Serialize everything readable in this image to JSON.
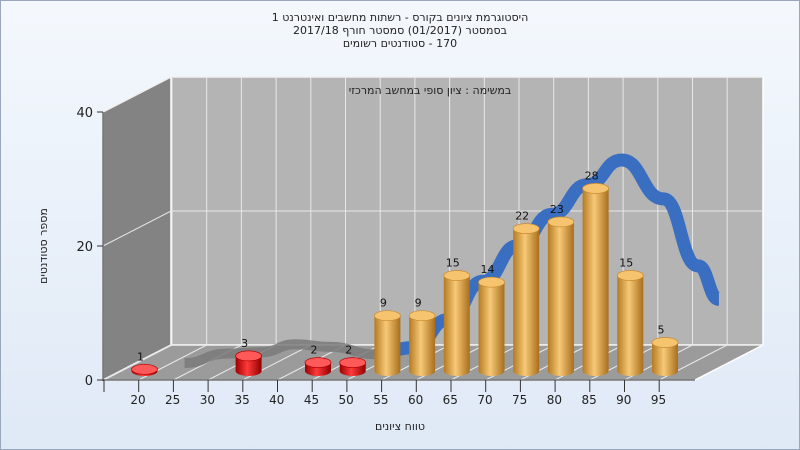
{
  "chart_data": {
    "type": "bar",
    "title_lines": [
      "היסטוגרמת ציונים בקורס - רשתות מחשבים ואינטרנט 1",
      "בסמסטר  (01/2017)  סמסטר חורף 2017/18",
      "170 - סטודנטים רשומים"
    ],
    "subtitle": "במשימה : ציון סופי במחשב המרכזי",
    "xlabel": "טווח ציונים",
    "ylabel": "מספר סטודנטים",
    "ylim": [
      0,
      40
    ],
    "yticks": [
      "0",
      "20",
      "40"
    ],
    "categories": [
      "20",
      "25",
      "30",
      "35",
      "40",
      "45",
      "50",
      "55",
      "60",
      "65",
      "70",
      "75",
      "80",
      "85",
      "90",
      "95"
    ],
    "values": [
      1,
      0,
      0,
      3,
      0,
      2,
      2,
      9,
      9,
      15,
      14,
      22,
      23,
      28,
      15,
      5
    ],
    "labels": [
      "1",
      "",
      "",
      "3",
      "",
      "2",
      "2",
      "9",
      "9",
      "15",
      "14",
      "22",
      "23",
      "28",
      "15",
      "5"
    ],
    "fail_threshold": 55,
    "grid": true,
    "colors": {
      "fail": "#e00000",
      "pass": "#eba84a",
      "curve_visible": "#3a6ec0",
      "curve_hidden": "#7a7a7a",
      "wall_back": "#b4b4b4",
      "wall_left": "#838383",
      "floor": "#9b9b9b"
    }
  }
}
